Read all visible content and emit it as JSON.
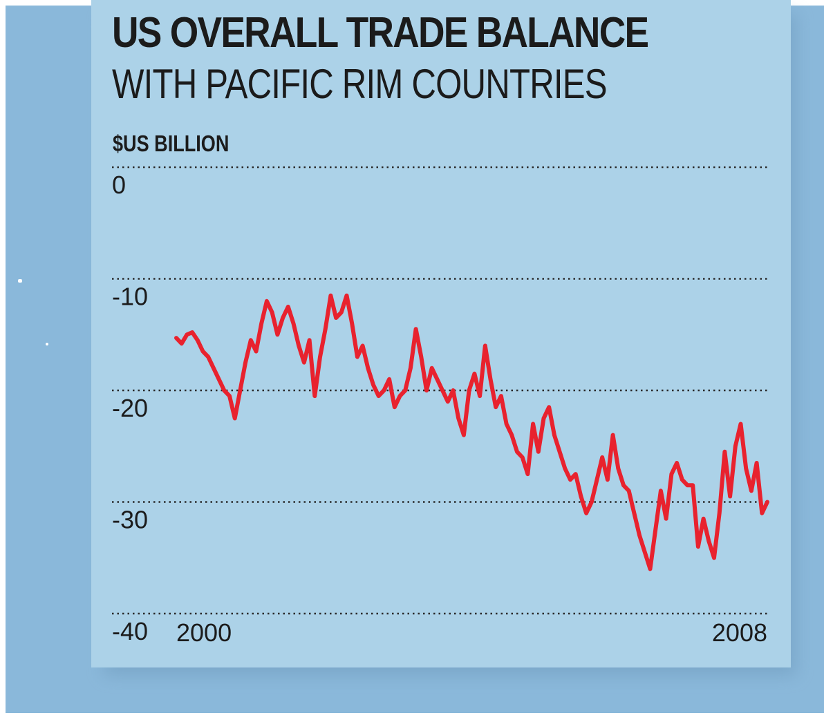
{
  "chart_data": {
    "type": "line",
    "title": "US OVERALL TRADE BALANCE",
    "subtitle": "WITH PACIFIC RIM COUNTRIES",
    "ylabel": "$US BILLION",
    "xlabel": "",
    "ylim": [
      -40,
      0
    ],
    "yticks": [
      "0",
      "-10",
      "-20",
      "-30",
      "-40"
    ],
    "xtick_labels": [
      "2000",
      "2008"
    ],
    "xlim": [
      2000.0,
      2008.25
    ],
    "grid": "dotted horizontal",
    "line_color": "#e8222e",
    "series": [
      {
        "values": [
          -15.3,
          -15.8,
          -15.0,
          -14.8,
          -15.5,
          -16.5,
          -17.0,
          -18.0,
          -19.0,
          -20.0,
          -20.5,
          -22.5,
          -20.0,
          -17.5,
          -15.5,
          -16.5,
          -14.0,
          -12.0,
          -13.0,
          -15.0,
          -13.5,
          -12.5,
          -14.0,
          -16.0,
          -17.5,
          -15.5,
          -20.5,
          -17.0,
          -14.5,
          -11.5,
          -13.5,
          -13.0,
          -11.5,
          -14.0,
          -17.0,
          -16.0,
          -18.0,
          -19.5,
          -20.5,
          -20.0,
          -19.0,
          -21.5,
          -20.5,
          -20.0,
          -18.0,
          -14.5,
          -17.0,
          -20.0,
          -18.0,
          -19.0,
          -20.0,
          -21.0,
          -20.0,
          -22.5,
          -24.0,
          -20.0,
          -18.5,
          -20.5,
          -16.0,
          -19.0,
          -21.5,
          -20.5,
          -23.0,
          -24.0,
          -25.5,
          -26.0,
          -27.5,
          -23.0,
          -25.5,
          -22.5,
          -21.5,
          -24.0,
          -25.5,
          -27.0,
          -28.0,
          -27.5,
          -29.5,
          -31.0,
          -30.0,
          -28.0,
          -26.0,
          -28.0,
          -24.0,
          -27.0,
          -28.5,
          -29.0,
          -31.0,
          -33.0,
          -34.5,
          -36.0,
          -32.5,
          -29.0,
          -31.5,
          -27.5,
          -26.5,
          -28.0,
          -28.5,
          -28.5,
          -34.0,
          -31.5,
          -33.5,
          -35.0,
          -31.0,
          -25.5,
          -29.5,
          -25.0,
          -23.0,
          -27.0,
          -29.0,
          -26.5,
          -31.0,
          -30.0
        ]
      }
    ]
  }
}
